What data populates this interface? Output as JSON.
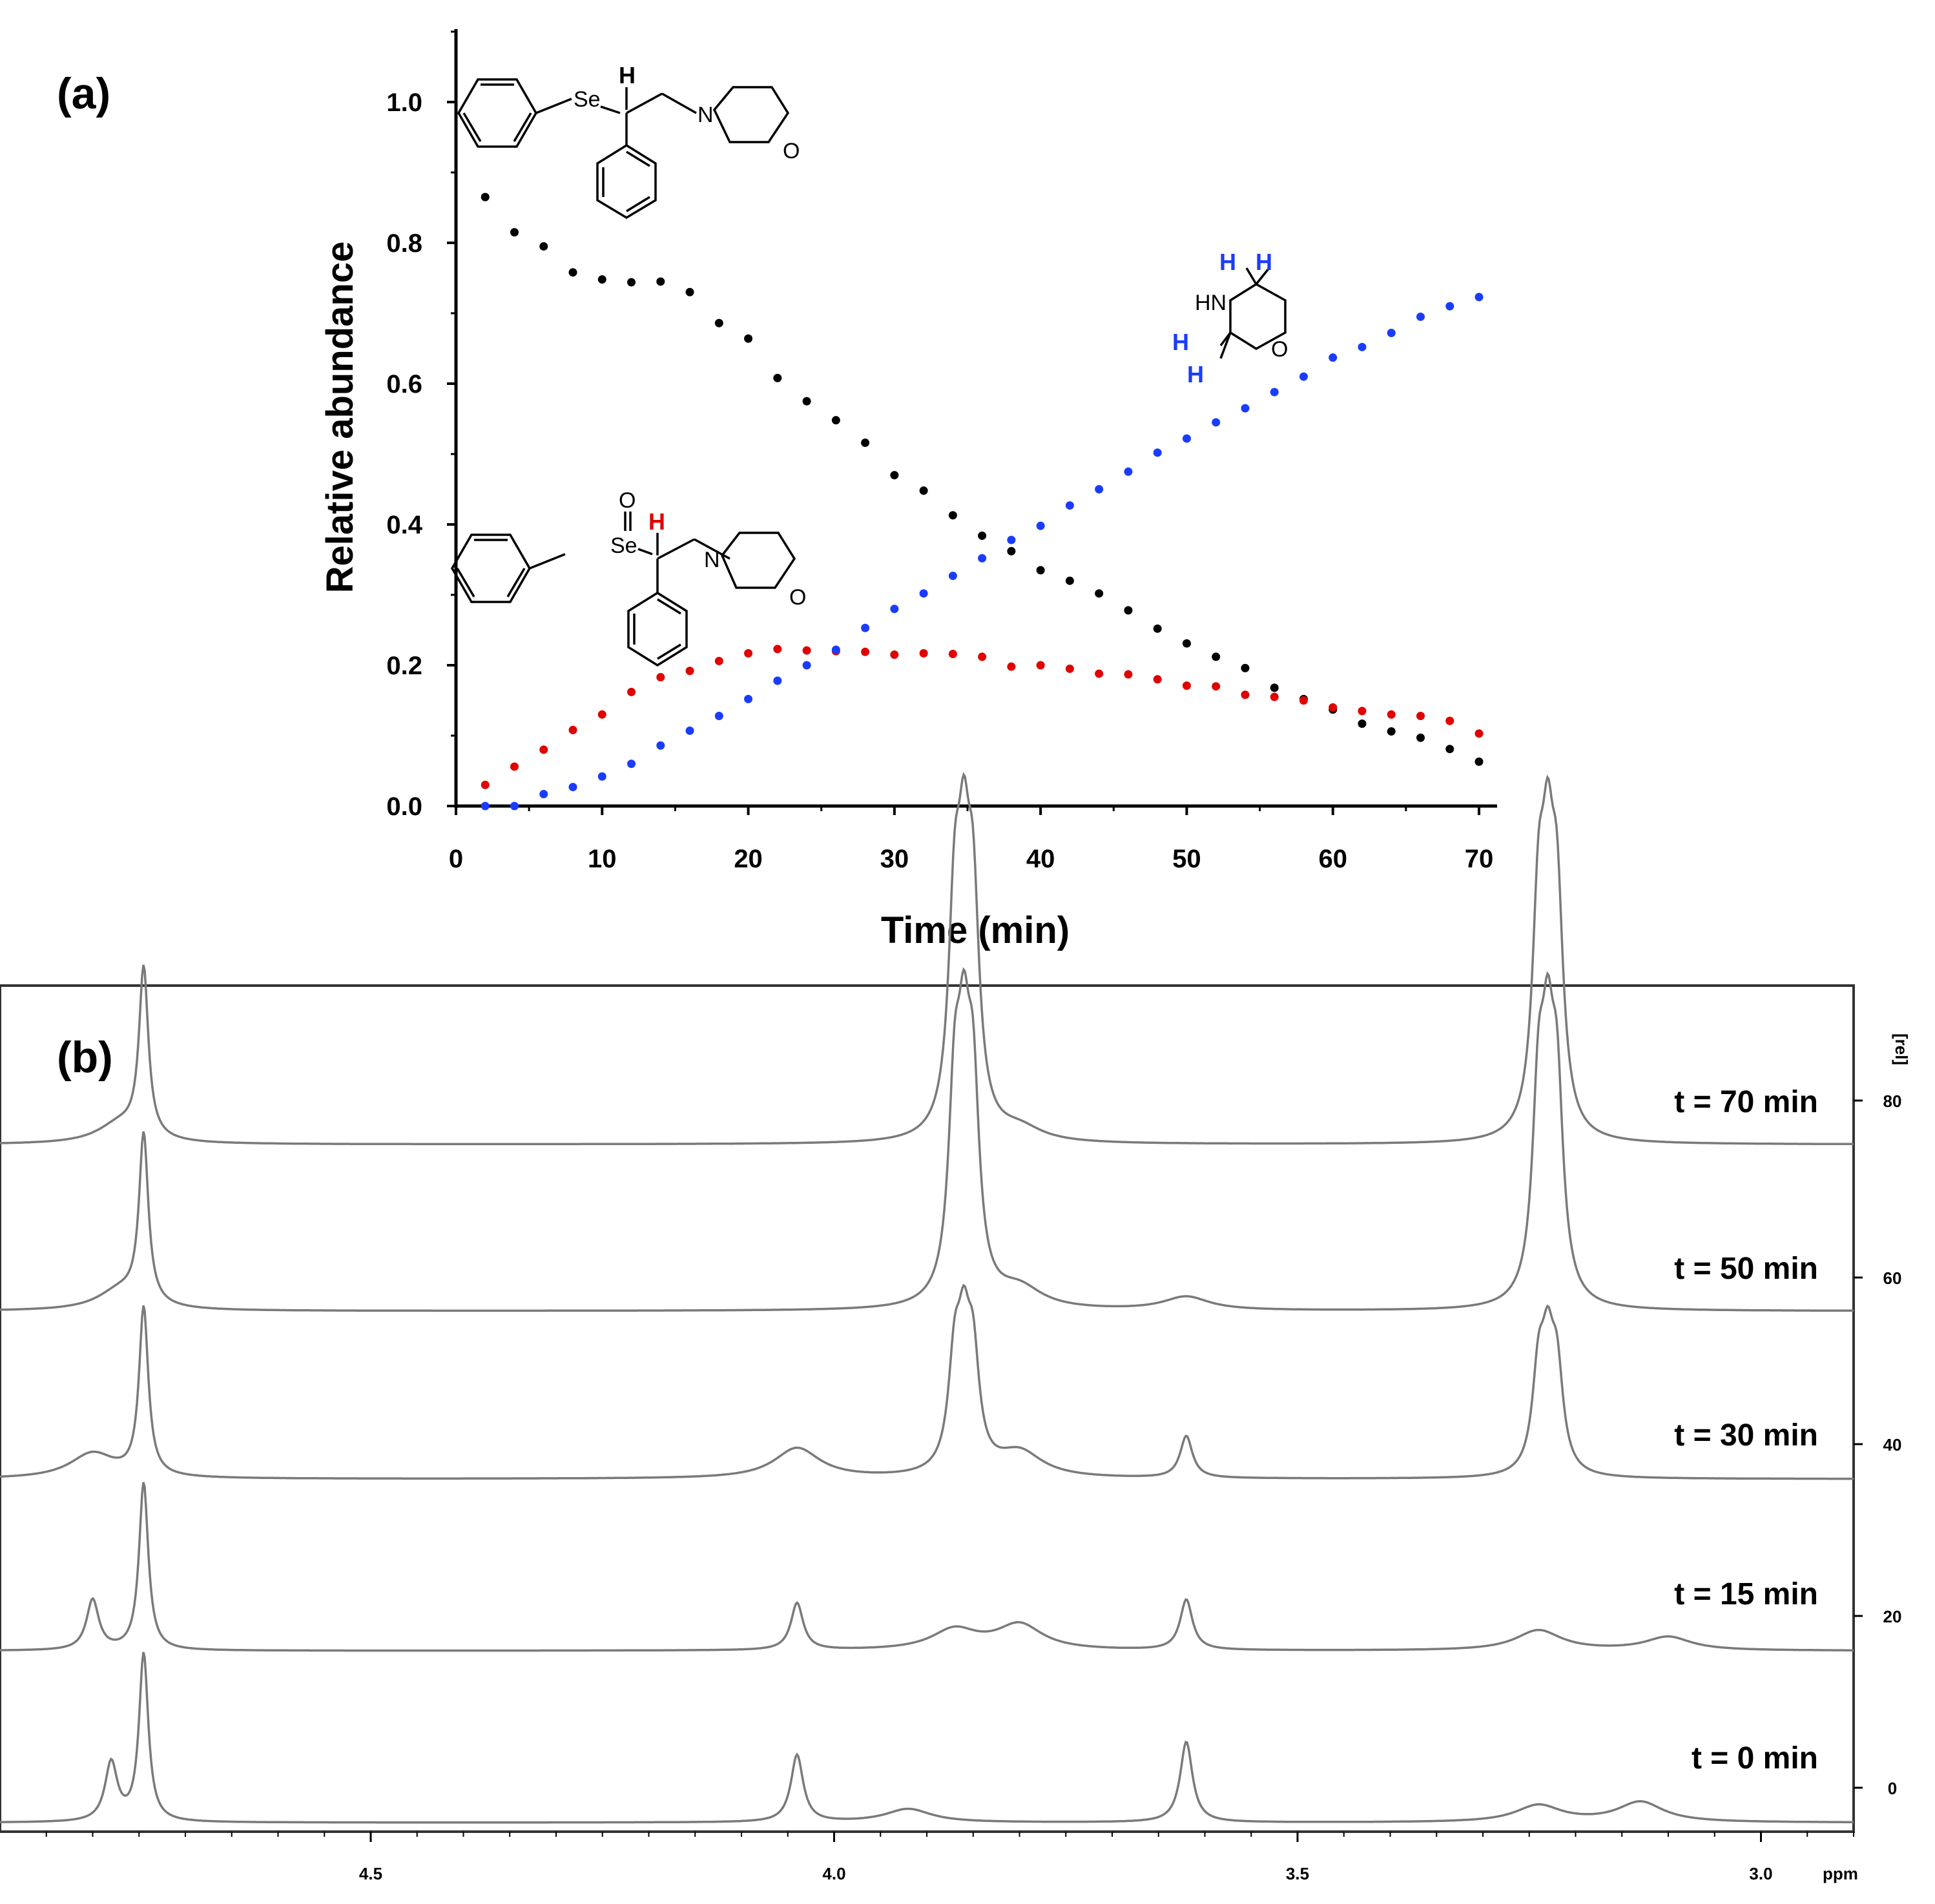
{
  "panel_a": {
    "label": "(a)",
    "molecules": {
      "substrate": {
        "atoms": [
          "Se",
          "H",
          "N",
          "O"
        ]
      },
      "selenoxide": {
        "atoms": [
          "O",
          "Se",
          "H",
          "N",
          "O"
        ],
        "highlight_color": "#e00000"
      },
      "morpholine": {
        "atoms": [
          "HN",
          "O",
          "H",
          "H",
          "H",
          "H"
        ],
        "highlight_color": "#1a3cff"
      }
    }
  },
  "panel_b": {
    "label": "(b)",
    "right_axis_label": "[rel]",
    "x_unit": "ppm",
    "traces": [
      {
        "label": "t = 70 min"
      },
      {
        "label": "t = 50 min"
      },
      {
        "label": "t = 30 min"
      },
      {
        "label": "t = 15 min"
      },
      {
        "label": "t = 0 min"
      }
    ]
  },
  "chart_data": [
    {
      "type": "scatter",
      "title": "",
      "xlabel": "Time (min)",
      "ylabel": "Relative abundance",
      "xlim": [
        0,
        70
      ],
      "ylim": [
        0,
        1.1
      ],
      "x_ticks": [
        0,
        10,
        20,
        30,
        40,
        50,
        60,
        70
      ],
      "x_tick_labels": [
        "0",
        "10",
        "20",
        "30",
        "40",
        "50",
        "60",
        "70"
      ],
      "y_ticks": [
        0.0,
        0.2,
        0.4,
        0.6,
        0.8,
        1.0
      ],
      "y_tick_labels": [
        "0.0",
        "0.2",
        "0.4",
        "0.6",
        "0.8",
        "1.0"
      ],
      "grid": false,
      "x": [
        2,
        4,
        6,
        8,
        10,
        12,
        14,
        16,
        18,
        20,
        22,
        24,
        26,
        28,
        30,
        32,
        34,
        36,
        38,
        40,
        42,
        44,
        46,
        48,
        50,
        52,
        54,
        56,
        58,
        60,
        62,
        64,
        66,
        68,
        70
      ],
      "series": [
        {
          "name": "selenide substrate",
          "color": "#000000",
          "values": [
            0.865,
            0.815,
            0.795,
            0.758,
            0.748,
            0.744,
            0.745,
            0.73,
            0.686,
            0.664,
            0.608,
            0.575,
            0.548,
            0.516,
            0.47,
            0.448,
            0.413,
            0.384,
            0.362,
            0.335,
            0.32,
            0.302,
            0.278,
            0.252,
            0.231,
            0.212,
            0.196,
            0.168,
            0.152,
            0.137,
            0.117,
            0.106,
            0.097,
            0.081,
            0.063
          ]
        },
        {
          "name": "selenoxide intermediate",
          "color": "#e00000",
          "values": [
            0.03,
            0.056,
            0.08,
            0.108,
            0.13,
            0.162,
            0.183,
            0.192,
            0.206,
            0.217,
            0.223,
            0.221,
            0.22,
            0.219,
            0.215,
            0.217,
            0.216,
            0.212,
            0.198,
            0.2,
            0.195,
            0.188,
            0.187,
            0.18,
            0.171,
            0.17,
            0.158,
            0.155,
            0.15,
            0.14,
            0.135,
            0.13,
            0.128,
            0.121,
            0.103
          ]
        },
        {
          "name": "morpholine-d4",
          "color": "#1a3cff",
          "values": [
            0.0,
            0.0,
            0.017,
            0.027,
            0.042,
            0.06,
            0.086,
            0.107,
            0.128,
            0.152,
            0.178,
            0.2,
            0.222,
            0.253,
            0.28,
            0.302,
            0.327,
            0.352,
            0.378,
            0.398,
            0.427,
            0.45,
            0.475,
            0.502,
            0.522,
            0.545,
            0.565,
            0.588,
            0.61,
            0.637,
            0.652,
            0.672,
            0.695,
            0.71,
            0.723
          ]
        }
      ]
    },
    {
      "type": "line",
      "title": "",
      "xlabel": "ppm",
      "ylabel": "[rel]",
      "xlim": [
        4.9,
        2.9
      ],
      "x_tick_labels": [
        "4.5",
        "4.0",
        "3.5",
        "3.0"
      ],
      "x_ticks": [
        4.5,
        4.0,
        3.5,
        3.0
      ],
      "y_tick_labels": [
        "0",
        "20",
        "40",
        "60",
        "80"
      ],
      "y_ticks": [
        0,
        20,
        40,
        60,
        80
      ],
      "series": [
        {
          "name": "t = 70 min",
          "color": "#7a7a7a",
          "peaks": [
            [
              4.745,
              1.0
            ],
            [
              4.77,
              0.12
            ],
            [
              3.87,
              1.2
            ],
            [
              3.86,
              1.25
            ],
            [
              3.85,
              1.2
            ],
            [
              3.8,
              0.08
            ],
            [
              3.24,
              1.2
            ],
            [
              3.23,
              1.25
            ],
            [
              3.22,
              1.2
            ]
          ]
        },
        {
          "name": "t = 50 min",
          "color": "#7a7a7a",
          "peaks": [
            [
              4.745,
              1.0
            ],
            [
              4.77,
              0.12
            ],
            [
              3.87,
              1.1
            ],
            [
              3.86,
              1.15
            ],
            [
              3.85,
              1.1
            ],
            [
              3.8,
              0.12
            ],
            [
              3.62,
              0.08
            ],
            [
              3.24,
              1.1
            ],
            [
              3.23,
              1.15
            ],
            [
              3.22,
              1.1
            ]
          ]
        },
        {
          "name": "t = 30 min",
          "color": "#7a7a7a",
          "peaks": [
            [
              4.745,
              1.0
            ],
            [
              4.8,
              0.15
            ],
            [
              4.04,
              0.18
            ],
            [
              3.87,
              0.6
            ],
            [
              3.86,
              0.65
            ],
            [
              3.85,
              0.6
            ],
            [
              3.8,
              0.15
            ],
            [
              3.62,
              0.25
            ],
            [
              3.24,
              0.55
            ],
            [
              3.23,
              0.6
            ],
            [
              3.22,
              0.55
            ]
          ]
        },
        {
          "name": "t = 15 min",
          "color": "#7a7a7a",
          "peaks": [
            [
              4.745,
              1.0
            ],
            [
              4.8,
              0.3
            ],
            [
              4.04,
              0.28
            ],
            [
              3.87,
              0.12
            ],
            [
              3.8,
              0.15
            ],
            [
              3.62,
              0.3
            ],
            [
              3.24,
              0.12
            ],
            [
              3.1,
              0.08
            ]
          ]
        },
        {
          "name": "t = 0 min",
          "color": "#7a7a7a",
          "peaks": [
            [
              4.745,
              1.0
            ],
            [
              4.78,
              0.35
            ],
            [
              4.04,
              0.4
            ],
            [
              3.92,
              0.08
            ],
            [
              3.62,
              0.48
            ],
            [
              3.24,
              0.1
            ],
            [
              3.13,
              0.12
            ]
          ]
        }
      ]
    }
  ]
}
